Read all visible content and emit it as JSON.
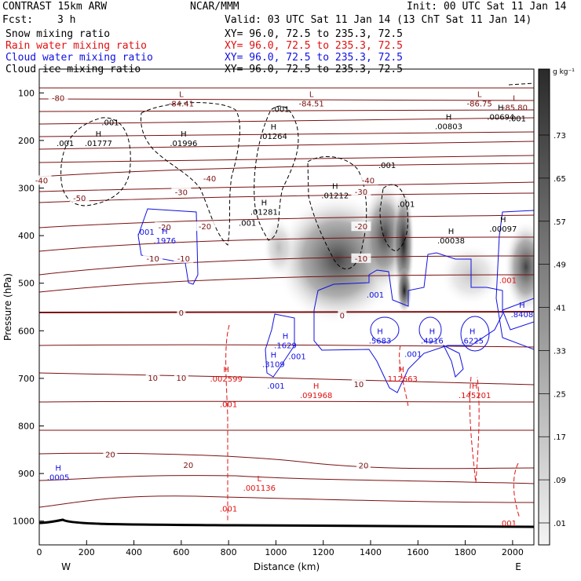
{
  "header": {
    "model": "CONTRAST 15km ARW",
    "org": "NCAR/MMM",
    "init": "Init: 00 UTC Sat 11 Jan 14",
    "fcst_label": "Fcst:",
    "fcst_value": "3 h",
    "valid": "Valid: 03 UTC Sat 11 Jan 14 (13 ChT Sat 11 Jan 14)",
    "xy": "XY=  96.0, 72.5 to 235.3, 72.5",
    "layers": [
      {
        "name": "Snow mixing ratio",
        "color": "#000000"
      },
      {
        "name": "Rain water mixing ratio",
        "color": "#e01010"
      },
      {
        "name": "Cloud water mixing ratio",
        "color": "#1010e0"
      },
      {
        "name": "Cloud ice mixing ratio",
        "color": "#000000"
      }
    ]
  },
  "chart_data": {
    "type": "cross-section",
    "xlabel": "Distance (km)",
    "ylabel": "Pressure (hPa)",
    "xlim": [
      0,
      2090
    ],
    "ylim": [
      1050,
      50
    ],
    "x_ticks": [
      0,
      200,
      400,
      600,
      800,
      1000,
      1200,
      1400,
      1600,
      1800,
      2000
    ],
    "y_ticks": [
      100,
      200,
      300,
      400,
      500,
      600,
      700,
      800,
      900,
      1000
    ],
    "x_end_labels": {
      "left": "W",
      "right": "E"
    },
    "colorbar": {
      "unit": "g kg⁻¹",
      "ticks": [
        ".73",
        ".65",
        ".57",
        ".49",
        ".41",
        ".33",
        ".25",
        ".17",
        ".09",
        ".01"
      ],
      "dark_color": "#2a2a2a",
      "light_color": "#f4f4f4"
    },
    "isotherms": {
      "color": "#7a1010",
      "labels": [
        {
          "text": "-80",
          "x": 80,
          "p": 112
        },
        {
          "text": "-50",
          "x": 170,
          "p": 322
        },
        {
          "text": "-40",
          "x": 10,
          "p": 285
        },
        {
          "text": "-40",
          "x": 720,
          "p": 281
        },
        {
          "text": "-40",
          "x": 1390,
          "p": 285
        },
        {
          "text": "-30",
          "x": 600,
          "p": 310
        },
        {
          "text": "-30",
          "x": 1360,
          "p": 309
        },
        {
          "text": "-20",
          "x": 530,
          "p": 383
        },
        {
          "text": "-20",
          "x": 700,
          "p": 382
        },
        {
          "text": "-20",
          "x": 1360,
          "p": 382
        },
        {
          "text": "-10",
          "x": 480,
          "p": 449
        },
        {
          "text": "-10",
          "x": 610,
          "p": 449
        },
        {
          "text": "-10",
          "x": 1360,
          "p": 449
        },
        {
          "text": "0",
          "x": 600,
          "p": 563
        },
        {
          "text": "0",
          "x": 1280,
          "p": 569
        },
        {
          "text": "10",
          "x": 480,
          "p": 700
        },
        {
          "text": "10",
          "x": 600,
          "p": 700
        },
        {
          "text": "10",
          "x": 1350,
          "p": 713
        },
        {
          "text": "20",
          "x": 300,
          "p": 861
        },
        {
          "text": "20",
          "x": 630,
          "p": 883
        },
        {
          "text": "20",
          "x": 1370,
          "p": 884
        }
      ]
    },
    "snow_label_001": ".001",
    "rain_label_001": ".001",
    "cloud_label_001": ".001",
    "extrema": [
      {
        "type": "L",
        "value": "-84.41",
        "x": 600,
        "p": 112,
        "color": "#7a1010"
      },
      {
        "type": "L",
        "value": "-84.51",
        "x": 1150,
        "p": 112,
        "color": "#7a1010"
      },
      {
        "type": "L",
        "value": "-86.75",
        "x": 1860,
        "p": 112,
        "color": "#7a1010"
      },
      {
        "type": "L",
        "value": "-85.80",
        "x": 2010,
        "p": 120,
        "color": "#7a1010"
      },
      {
        "type": "H",
        "value": ".01777",
        "x": 250,
        "p": 195,
        "color": "#000000"
      },
      {
        "type": "H",
        "value": ".01996",
        "x": 610,
        "p": 195,
        "color": "#000000"
      },
      {
        "type": "H",
        "value": ".01264",
        "x": 990,
        "p": 180,
        "color": "#000000"
      },
      {
        "type": "H",
        "value": ".01281",
        "x": 950,
        "p": 340,
        "color": "#000000"
      },
      {
        "type": "H",
        "value": ".01212",
        "x": 1250,
        "p": 305,
        "color": "#000000"
      },
      {
        "type": "H",
        "value": ".00803",
        "x": 1730,
        "p": 160,
        "color": "#000000"
      },
      {
        "type": "H",
        "value": ".00694",
        "x": 1950,
        "p": 140,
        "color": "#000000"
      },
      {
        "type": "H",
        "value": ".00038",
        "x": 1740,
        "p": 400,
        "color": "#000000"
      },
      {
        "type": "H",
        "value": ".00097",
        "x": 1960,
        "p": 375,
        "color": "#000000"
      },
      {
        "type": "H",
        "value": ".1976",
        "x": 530,
        "p": 400,
        "color": "#1010e0"
      },
      {
        "type": "H",
        "value": ".1629",
        "x": 1040,
        "p": 620,
        "color": "#1010e0"
      },
      {
        "type": "H",
        "value": ".3109",
        "x": 990,
        "p": 660,
        "color": "#1010e0"
      },
      {
        "type": "H",
        "value": ".5683",
        "x": 1440,
        "p": 610,
        "color": "#1010e0"
      },
      {
        "type": "H",
        "value": ".4916",
        "x": 1660,
        "p": 610,
        "color": "#1010e0"
      },
      {
        "type": "H",
        "value": ".6225",
        "x": 1830,
        "p": 610,
        "color": "#1010e0"
      },
      {
        "type": "H",
        "value": ".8408",
        "x": 2040,
        "p": 555,
        "color": "#1010e0"
      },
      {
        "type": "H",
        "value": ".0005",
        "x": 80,
        "p": 897,
        "color": "#1010e0"
      },
      {
        "type": "H",
        "value": ".002599",
        "x": 790,
        "p": 690,
        "color": "#e01010"
      },
      {
        "type": "H",
        "value": ".091968",
        "x": 1170,
        "p": 725,
        "color": "#e01010"
      },
      {
        "type": "H",
        "value": ".112663",
        "x": 1530,
        "p": 690,
        "color": "#e01010"
      },
      {
        "type": "H",
        "value": ".145201",
        "x": 1840,
        "p": 725,
        "color": "#e01010"
      },
      {
        "type": "L",
        "value": ".001136",
        "x": 930,
        "p": 920,
        "color": "#e01010"
      }
    ]
  }
}
